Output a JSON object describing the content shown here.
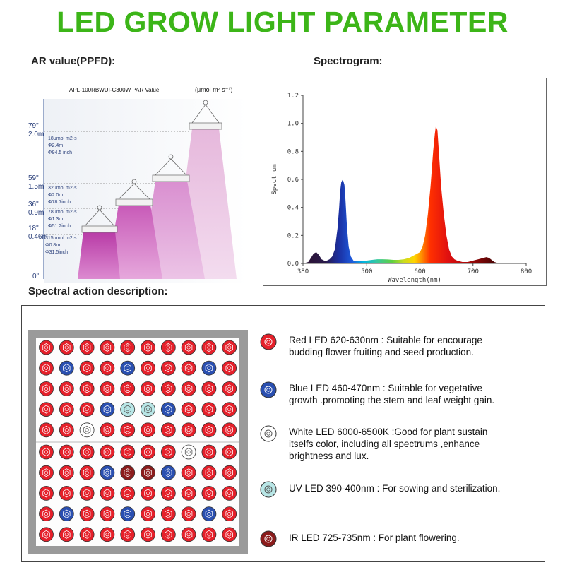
{
  "title": "LED GROW LIGHT PARAMETER",
  "ppfd_heading": "AR value(PPFD):",
  "spectro_heading": "Spectrogram:",
  "action_heading": "Spectral action description:",
  "par": {
    "model_label": "APL-100RBWUI-C300W  PAR Value",
    "unit_label": "(μmol m² s⁻¹)",
    "ticks": [
      {
        "inch": "79\"",
        "meter": "2.0m"
      },
      {
        "inch": "59\"",
        "meter": "1.5m"
      },
      {
        "inch": "36\"",
        "meter": "0.9m"
      },
      {
        "inch": "18\"",
        "meter": "0.46m"
      },
      {
        "inch": "0\"",
        "meter": ""
      }
    ],
    "levels": [
      {
        "value": "18μmol m2·s",
        "diameter_m": "Φ2.4m",
        "diameter_in": "Φ94.5 inch"
      },
      {
        "value": "32μmol m2·s",
        "diameter_m": "Φ2.0m",
        "diameter_in": "Φ78.7inch"
      },
      {
        "value": "78μmol m2·s",
        "diameter_m": "Φ1.3m",
        "diameter_in": "Φ51.2inch"
      },
      {
        "value": "315μmol m2·s",
        "diameter_m": "Φ0.8m",
        "diameter_in": "Φ31.5inch"
      }
    ]
  },
  "chart_data": {
    "type": "area",
    "xlabel": "Wavelength(nm)",
    "ylabel": "Spectrum",
    "xlim": [
      380,
      800
    ],
    "ylim": [
      0,
      1.2
    ],
    "xticks": [
      380,
      500,
      600,
      700,
      800
    ],
    "yticks": [
      0.0,
      0.2,
      0.4,
      0.6,
      0.8,
      1.0,
      1.2
    ],
    "x": [
      380,
      390,
      395,
      400,
      405,
      410,
      415,
      420,
      425,
      430,
      435,
      440,
      445,
      448,
      450,
      452,
      455,
      458,
      460,
      463,
      466,
      470,
      475,
      480,
      490,
      500,
      510,
      520,
      530,
      540,
      550,
      560,
      570,
      580,
      590,
      600,
      605,
      610,
      615,
      620,
      625,
      628,
      630,
      633,
      636,
      640,
      645,
      650,
      655,
      660,
      665,
      670,
      680,
      690,
      700,
      710,
      720,
      725,
      730,
      735,
      740,
      745,
      750,
      760,
      780,
      800
    ],
    "y": [
      0.0,
      0.01,
      0.04,
      0.07,
      0.08,
      0.06,
      0.03,
      0.02,
      0.02,
      0.03,
      0.05,
      0.1,
      0.25,
      0.4,
      0.52,
      0.58,
      0.6,
      0.56,
      0.45,
      0.25,
      0.12,
      0.05,
      0.02,
      0.015,
      0.015,
      0.02,
      0.025,
      0.03,
      0.03,
      0.028,
      0.025,
      0.025,
      0.03,
      0.04,
      0.06,
      0.08,
      0.12,
      0.2,
      0.35,
      0.55,
      0.8,
      0.92,
      0.98,
      0.95,
      0.78,
      0.55,
      0.35,
      0.2,
      0.1,
      0.05,
      0.03,
      0.02,
      0.01,
      0.01,
      0.02,
      0.03,
      0.04,
      0.045,
      0.04,
      0.025,
      0.01,
      0.005,
      0.0,
      0.0,
      0.0,
      0.0
    ]
  },
  "legend": [
    {
      "type": "red",
      "text_lines": [
        "Red LED 620-630nm  : Suitable for encourage",
        "budding flower fruiting and seed production."
      ]
    },
    {
      "type": "blue",
      "text_lines": [
        "Blue LED 460-470nm    : Suitable for vegetative",
        "growth .promoting the stem and leaf weight gain."
      ]
    },
    {
      "type": "white",
      "text_lines": [
        "White LED 6000-6500K :Good for plant sustain",
        "itselfs color, including all spectrums ,enhance",
        "brightness and lux."
      ]
    },
    {
      "type": "uv",
      "text_lines": [
        "UV LED  390-400nm : For sowing and sterilization."
      ]
    },
    {
      "type": "ir",
      "text_lines": [
        "IR LED   725-735nm   : For plant flowering."
      ]
    }
  ],
  "colors": {
    "title_green": "#3cb518",
    "red": "#e5202a",
    "blue": "#2a4fb0",
    "white": "#ffffff",
    "uv": "#b8e6e6",
    "ir": "#8b1c1c"
  },
  "board_grid": [
    [
      "red",
      "red",
      "red",
      "red",
      "red",
      "red",
      "red",
      "red",
      "red",
      "red"
    ],
    [
      "red",
      "blue",
      "red",
      "red",
      "blue",
      "red",
      "red",
      "red",
      "blue",
      "red"
    ],
    [
      "red",
      "red",
      "red",
      "red",
      "red",
      "red",
      "red",
      "red",
      "red",
      "red"
    ],
    [
      "red",
      "red",
      "red",
      "blue",
      "uv",
      "uv",
      "blue",
      "red",
      "red",
      "red"
    ],
    [
      "red",
      "red",
      "white",
      "red",
      "red",
      "red",
      "red",
      "red",
      "red",
      "red"
    ],
    [
      "red",
      "red",
      "red",
      "red",
      "red",
      "red",
      "red",
      "white",
      "red",
      "red"
    ],
    [
      "red",
      "red",
      "red",
      "blue",
      "ir",
      "ir",
      "blue",
      "red",
      "red",
      "red"
    ],
    [
      "red",
      "red",
      "red",
      "red",
      "red",
      "red",
      "red",
      "red",
      "red",
      "red"
    ],
    [
      "red",
      "blue",
      "red",
      "red",
      "blue",
      "red",
      "red",
      "red",
      "blue",
      "red"
    ],
    [
      "red",
      "red",
      "red",
      "red",
      "red",
      "red",
      "red",
      "red",
      "red",
      "red"
    ]
  ]
}
